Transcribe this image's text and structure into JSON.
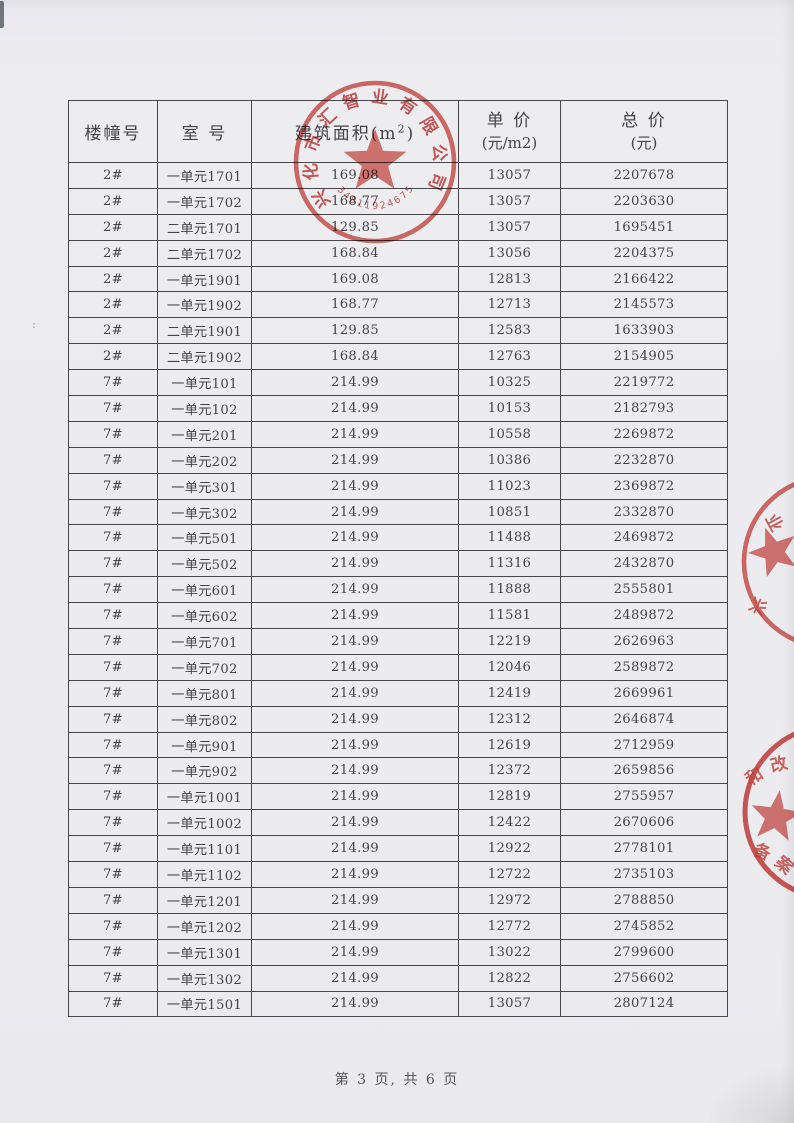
{
  "document": {
    "footer": {
      "page_indicator": "第 3 页, 共 6 页"
    }
  },
  "table": {
    "headers": {
      "building": "楼幢号",
      "room": "室 号",
      "area_prefix": "建筑面积(m",
      "area_sup": "2",
      "area_suffix": ")",
      "unit_price_line1": "单 价",
      "unit_price_line2": "(元/m2)",
      "total_price_line1": "总 价",
      "total_price_line2": "(元)"
    },
    "rows": [
      [
        "2#",
        "一单元1701",
        "169.08",
        "13057",
        "2207678"
      ],
      [
        "2#",
        "一单元1702",
        "168.77",
        "13057",
        "2203630"
      ],
      [
        "2#",
        "二单元1701",
        "129.85",
        "13057",
        "1695451"
      ],
      [
        "2#",
        "二单元1702",
        "168.84",
        "13056",
        "2204375"
      ],
      [
        "2#",
        "一单元1901",
        "169.08",
        "12813",
        "2166422"
      ],
      [
        "2#",
        "一单元1902",
        "168.77",
        "12713",
        "2145573"
      ],
      [
        "2#",
        "二单元1901",
        "129.85",
        "12583",
        "1633903"
      ],
      [
        "2#",
        "二单元1902",
        "168.84",
        "12763",
        "2154905"
      ],
      [
        "7#",
        "一单元101",
        "214.99",
        "10325",
        "2219772"
      ],
      [
        "7#",
        "一单元102",
        "214.99",
        "10153",
        "2182793"
      ],
      [
        "7#",
        "一单元201",
        "214.99",
        "10558",
        "2269872"
      ],
      [
        "7#",
        "一单元202",
        "214.99",
        "10386",
        "2232870"
      ],
      [
        "7#",
        "一单元301",
        "214.99",
        "11023",
        "2369872"
      ],
      [
        "7#",
        "一单元302",
        "214.99",
        "10851",
        "2332870"
      ],
      [
        "7#",
        "一单元501",
        "214.99",
        "11488",
        "2469872"
      ],
      [
        "7#",
        "一单元502",
        "214.99",
        "11316",
        "2432870"
      ],
      [
        "7#",
        "一单元601",
        "214.99",
        "11888",
        "2555801"
      ],
      [
        "7#",
        "一单元602",
        "214.99",
        "11581",
        "2489872"
      ],
      [
        "7#",
        "一单元701",
        "214.99",
        "12219",
        "2626963"
      ],
      [
        "7#",
        "一单元702",
        "214.99",
        "12046",
        "2589872"
      ],
      [
        "7#",
        "一单元801",
        "214.99",
        "12419",
        "2669961"
      ],
      [
        "7#",
        "一单元802",
        "214.99",
        "12312",
        "2646874"
      ],
      [
        "7#",
        "一单元901",
        "214.99",
        "12619",
        "2712959"
      ],
      [
        "7#",
        "一单元902",
        "214.99",
        "12372",
        "2659856"
      ],
      [
        "7#",
        "一单元1001",
        "214.99",
        "12819",
        "2755957"
      ],
      [
        "7#",
        "一单元1002",
        "214.99",
        "12422",
        "2670606"
      ],
      [
        "7#",
        "一单元1101",
        "214.99",
        "12922",
        "2778101"
      ],
      [
        "7#",
        "一单元1102",
        "214.99",
        "12722",
        "2735103"
      ],
      [
        "7#",
        "一单元1201",
        "214.99",
        "12972",
        "2788850"
      ],
      [
        "7#",
        "一单元1202",
        "214.99",
        "12772",
        "2745852"
      ],
      [
        "7#",
        "一单元1301",
        "214.99",
        "13022",
        "2799600"
      ],
      [
        "7#",
        "一单元1302",
        "214.99",
        "12822",
        "2756602"
      ],
      [
        "7#",
        "一单元1501",
        "214.99",
        "13057",
        "2807124"
      ]
    ]
  },
  "stamps": {
    "company_seal": {
      "arc_text": "兴化市汇智业有限公司",
      "serial_number": "34811924675"
    },
    "edge_seal_upper": {
      "fragment_top": "业",
      "fragment_bottom": "兴"
    },
    "edge_seal_lower": {
      "fragment_top_1": "和",
      "fragment_top_2": "改",
      "fragment_bottom_1": "备",
      "fragment_bottom_2": "案"
    }
  },
  "colors": {
    "stamp_red": "#cf4540",
    "paper": "#ededf0",
    "table_line": "#47474c",
    "text": "#454549"
  },
  "artifacts": {
    "left_margin_speck": ":"
  }
}
